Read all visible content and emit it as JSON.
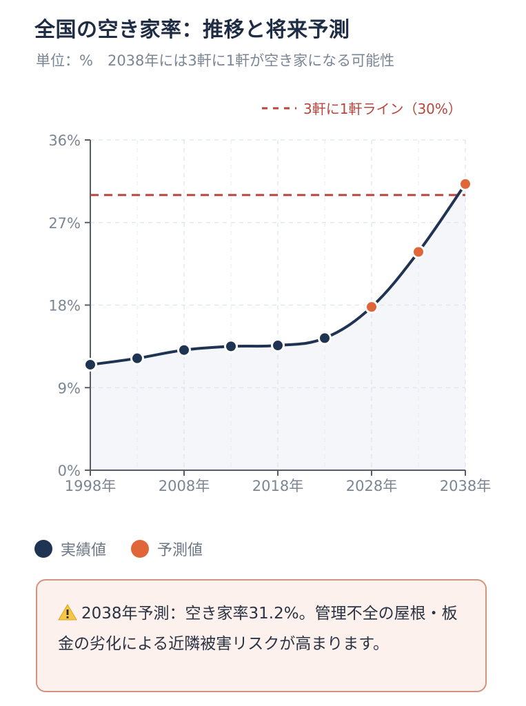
{
  "title": "全国の空き家率：推移と将来予測",
  "subtitle": "単位：%　2038年には3軒に1軒が空き家になる可能性",
  "chart_data": {
    "type": "line",
    "x": [
      1998,
      2003,
      2008,
      2013,
      2018,
      2023,
      2028,
      2033,
      2038
    ],
    "series": [
      {
        "name": "実績値",
        "x": [
          1998,
          2003,
          2008,
          2013,
          2018,
          2023
        ],
        "values": [
          11.5,
          12.2,
          13.1,
          13.5,
          13.6,
          14.4
        ],
        "color": "#1f3352"
      },
      {
        "name": "予測値",
        "x": [
          2028,
          2033,
          2038
        ],
        "values": [
          17.8,
          23.8,
          31.2
        ],
        "color": "#e0663a"
      }
    ],
    "xticks": [
      "1998年",
      "2008年",
      "2018年",
      "2028年",
      "2038年"
    ],
    "xtick_values": [
      1998,
      2008,
      2018,
      2028,
      2038
    ],
    "yticks": [
      "0%",
      "9%",
      "18%",
      "27%",
      "36%"
    ],
    "ytick_values": [
      0,
      9,
      18,
      27,
      36
    ],
    "ylim": [
      0,
      36
    ],
    "xlim": [
      1998,
      2038
    ],
    "reference_line": {
      "label": "3軒に1軒ライン（30%）",
      "value": 30,
      "color": "#b9443a"
    },
    "grid": true,
    "legend_position": "bottom-left"
  },
  "legend": {
    "actual_label": "実績値",
    "forecast_label": "予測値",
    "actual_color": "#1f3352",
    "forecast_color": "#e0663a"
  },
  "notice": {
    "icon": "warning-icon",
    "text": "2038年予測：空き家率31.2%。管理不全の屋根・板金の劣化による近隣被害リスクが高まります。"
  }
}
